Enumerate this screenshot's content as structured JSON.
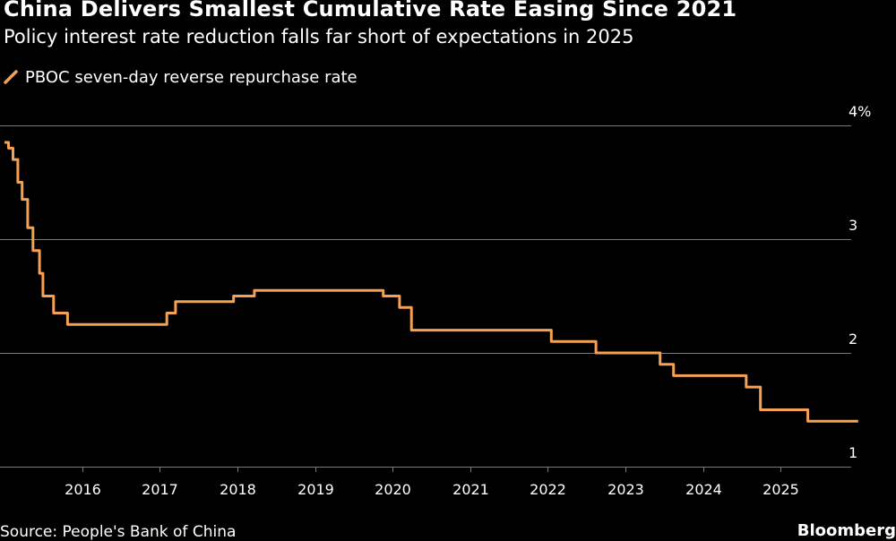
{
  "title": "China Delivers Smallest Cumulative Rate Easing Since 2021",
  "subtitle": "Policy interest rate reduction falls far short of expectations in 2025",
  "source": "Source: People's Bank of China",
  "brand": "Bloomberg",
  "colors": {
    "background": "#000000",
    "line": "#f5a153",
    "grid": "#7a7a7a",
    "text": "#ffffff"
  },
  "chart_data": {
    "type": "line",
    "title": "China Delivers Smallest Cumulative Rate Easing Since 2021",
    "subtitle": "Policy interest rate reduction falls far short of expectations in 2025",
    "xlabel": "",
    "ylabel": "",
    "y_unit": "%",
    "y_axis_position": "right",
    "ylim": [
      1,
      4
    ],
    "yticks": [
      1,
      2,
      3,
      4
    ],
    "ytick_labels": [
      "1",
      "2",
      "3",
      "4%"
    ],
    "xlim": [
      "2015-01-01",
      "2026-01-01"
    ],
    "xticks": [
      "2016",
      "2017",
      "2018",
      "2019",
      "2020",
      "2021",
      "2022",
      "2023",
      "2024",
      "2025"
    ],
    "grid": true,
    "legend_position": "top-left",
    "series": [
      {
        "name": "PBOC seven-day reverse repurchase rate",
        "color": "#f5a153",
        "step": true,
        "points": [
          {
            "x": "2015-01-01",
            "y": 3.85
          },
          {
            "x": "2015-01-20",
            "y": 3.8
          },
          {
            "x": "2015-02-10",
            "y": 3.7
          },
          {
            "x": "2015-03-05",
            "y": 3.5
          },
          {
            "x": "2015-03-25",
            "y": 3.35
          },
          {
            "x": "2015-04-20",
            "y": 3.1
          },
          {
            "x": "2015-05-15",
            "y": 2.9
          },
          {
            "x": "2015-06-15",
            "y": 2.7
          },
          {
            "x": "2015-07-01",
            "y": 2.5
          },
          {
            "x": "2015-08-20",
            "y": 2.35
          },
          {
            "x": "2015-10-25",
            "y": 2.25
          },
          {
            "x": "2017-02-03",
            "y": 2.35
          },
          {
            "x": "2017-03-16",
            "y": 2.45
          },
          {
            "x": "2017-12-14",
            "y": 2.5
          },
          {
            "x": "2018-03-22",
            "y": 2.55
          },
          {
            "x": "2019-11-18",
            "y": 2.5
          },
          {
            "x": "2020-02-03",
            "y": 2.4
          },
          {
            "x": "2020-03-30",
            "y": 2.2
          },
          {
            "x": "2022-01-17",
            "y": 2.1
          },
          {
            "x": "2022-08-15",
            "y": 2.0
          },
          {
            "x": "2023-06-13",
            "y": 1.9
          },
          {
            "x": "2023-08-15",
            "y": 1.8
          },
          {
            "x": "2024-07-22",
            "y": 1.7
          },
          {
            "x": "2024-09-27",
            "y": 1.5
          },
          {
            "x": "2025-05-08",
            "y": 1.4
          },
          {
            "x": "2025-12-31",
            "y": 1.4
          }
        ]
      }
    ]
  }
}
